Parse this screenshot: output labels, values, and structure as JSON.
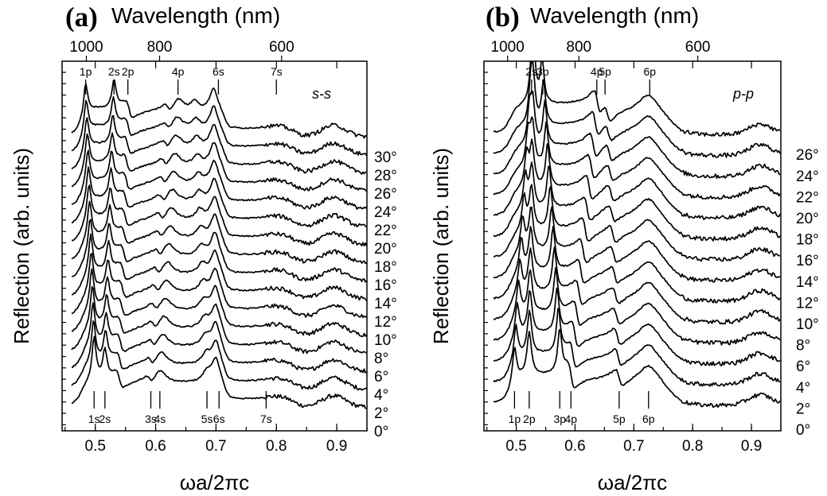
{
  "chart_data": [
    {
      "type": "line",
      "panel_label": "(a)",
      "polarization": "s-s",
      "xlabel": "ωa/2πc",
      "ylabel": "Reflection (arb. units)",
      "top_axis_title": "Wavelength (nm)",
      "top_axis_ticks": [
        "1000",
        "800",
        "600"
      ],
      "top_axis_tick_x": [
        0.4852,
        0.6065,
        0.8087
      ],
      "xlim": [
        0.445,
        0.95
      ],
      "xticks": [
        "0.5",
        "0.6",
        "0.7",
        "0.8",
        "0.9"
      ],
      "xtick_values": [
        0.5,
        0.6,
        0.7,
        0.8,
        0.9
      ],
      "angles": [
        "0°",
        "2°",
        "4°",
        "6°",
        "8°",
        "10°",
        "12°",
        "14°",
        "16°",
        "18°",
        "20°",
        "22°",
        "24°",
        "26°",
        "28°",
        "30°"
      ],
      "top_labels": [
        {
          "text": "1p",
          "x": 0.484
        },
        {
          "text": "2s",
          "x": 0.531
        },
        {
          "text": "2p",
          "x": 0.554
        },
        {
          "text": "4p",
          "x": 0.637
        },
        {
          "text": "6s",
          "x": 0.704
        },
        {
          "text": "7s",
          "x": 0.8
        }
      ],
      "bottom_labels": [
        {
          "text": "1s",
          "x": 0.498
        },
        {
          "text": "2s",
          "x": 0.516
        },
        {
          "text": "3s",
          "x": 0.592
        },
        {
          "text": "4s",
          "x": 0.607
        },
        {
          "text": "5s",
          "x": 0.685
        },
        {
          "text": "6s",
          "x": 0.705
        },
        {
          "text": "7s",
          "x": 0.783
        }
      ]
    },
    {
      "type": "line",
      "panel_label": "(b)",
      "polarization": "p-p",
      "xlabel": "ωa/2πc",
      "ylabel": "Reflection (arb. units)",
      "top_axis_title": "Wavelength (nm)",
      "top_axis_ticks": [
        "1000",
        "800",
        "600"
      ],
      "top_axis_tick_x": [
        0.4852,
        0.6065,
        0.8087
      ],
      "xlim": [
        0.445,
        0.95
      ],
      "xticks": [
        "0.5",
        "0.6",
        "0.7",
        "0.8",
        "0.9"
      ],
      "xtick_values": [
        0.5,
        0.6,
        0.7,
        0.8,
        0.9
      ],
      "angles": [
        "0°",
        "2°",
        "4°",
        "6°",
        "8°",
        "10°",
        "12°",
        "14°",
        "16°",
        "18°",
        "20°",
        "22°",
        "24°",
        "26°"
      ],
      "top_labels": [
        {
          "text": "2s",
          "x": 0.526
        },
        {
          "text": "3p",
          "x": 0.545
        },
        {
          "text": "4p",
          "x": 0.637
        },
        {
          "text": "5p",
          "x": 0.651
        },
        {
          "text": "6p",
          "x": 0.727
        }
      ],
      "bottom_labels": [
        {
          "text": "1p",
          "x": 0.497
        },
        {
          "text": "2p",
          "x": 0.522
        },
        {
          "text": "3p",
          "x": 0.574
        },
        {
          "text": "4p",
          "x": 0.593
        },
        {
          "text": "5p",
          "x": 0.675
        },
        {
          "text": "6p",
          "x": 0.725
        }
      ]
    }
  ]
}
